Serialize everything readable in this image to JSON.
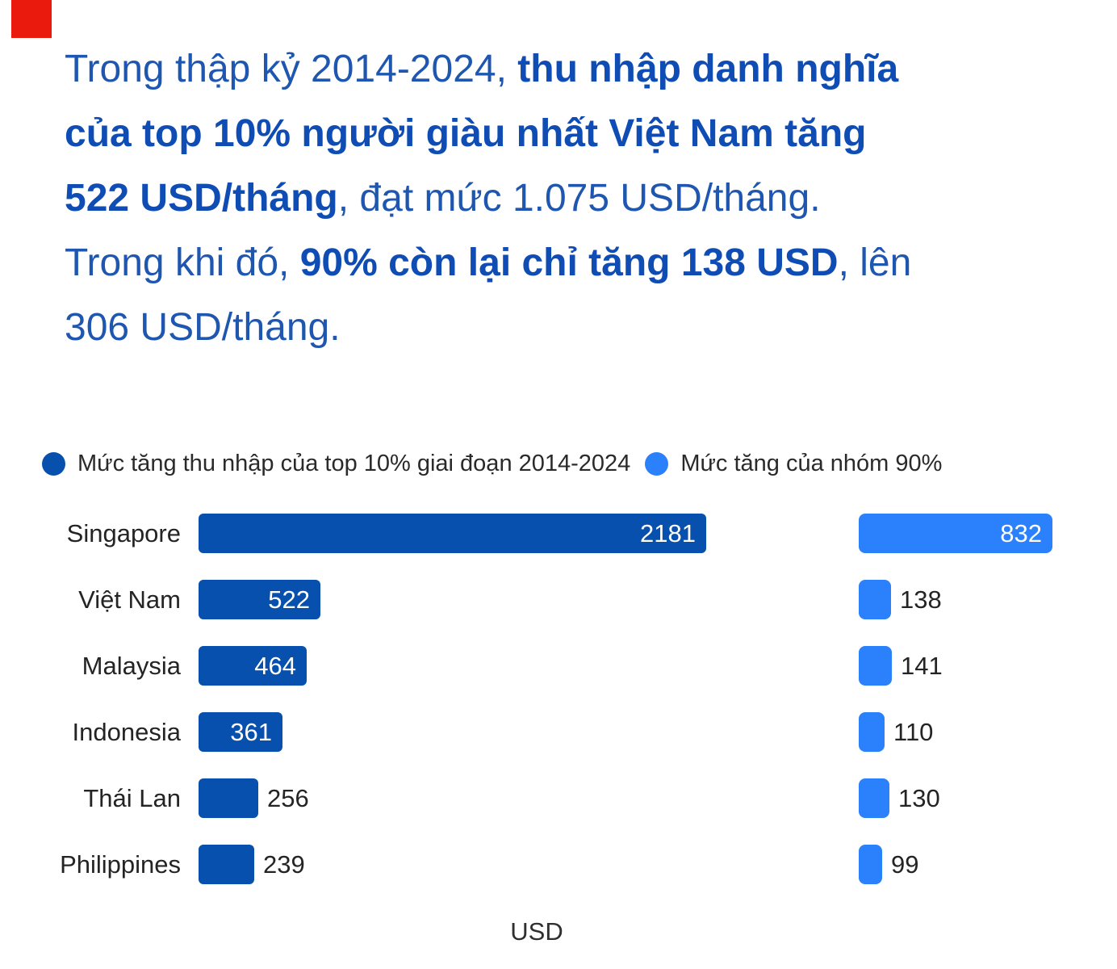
{
  "marker": {
    "color": "#EA1B0C"
  },
  "headline": {
    "color_regular": "#1E56B0",
    "color_bold": "#0F4DB5",
    "lines": [
      [
        {
          "t": "Trong thập kỷ 2014-2024, ",
          "b": false
        },
        {
          "t": "thu nhập danh nghĩa",
          "b": true
        }
      ],
      [
        {
          "t": "của top 10% người giàu nhất Việt Nam tăng",
          "b": true
        }
      ],
      [
        {
          "t": "522 USD/tháng",
          "b": true
        },
        {
          "t": ", đạt mức 1.075 USD/tháng.",
          "b": false
        }
      ],
      [
        {
          "t": "Trong khi đó, ",
          "b": false
        },
        {
          "t": "90% còn lại chỉ tăng 138 USD",
          "b": true
        },
        {
          "t": ", lên",
          "b": false
        }
      ],
      [
        {
          "t": "306 USD/tháng.",
          "b": false
        }
      ]
    ]
  },
  "chart_data": {
    "type": "bar",
    "orientation": "horizontal",
    "title": "",
    "xlabel": "USD",
    "ylabel": "",
    "legend_position": "top",
    "grid": false,
    "value_labels": true,
    "categories": [
      "Singapore",
      "Việt Nam",
      "Malaysia",
      "Indonesia",
      "Thái Lan",
      "Philippines"
    ],
    "series": [
      {
        "name": "Mức tăng thu nhập của top 10% giai đoạn 2014-2024",
        "color": "#0850AD",
        "values": [
          2181,
          522,
          464,
          361,
          256,
          239
        ]
      },
      {
        "name": "Mức tăng của nhóm 90%",
        "color": "#2B80FB",
        "values": [
          832,
          138,
          141,
          110,
          130,
          99
        ]
      }
    ]
  }
}
